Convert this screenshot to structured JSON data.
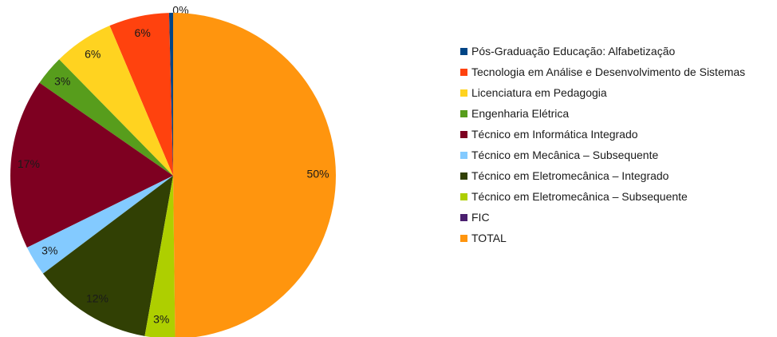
{
  "chart_data": {
    "type": "pie",
    "categories": [
      "Pós-Graduação Educação: Alfabetização",
      "Tecnologia em Análise e Desenvolvimento de Sistemas",
      "Licenciatura em Pedagogia",
      "Engenharia Elétrica",
      "Técnico em Informática Integrado",
      "Técnico em Mecânica – Subsequente",
      "Técnico em Eletromecânica – Integrado",
      "Técnico em Eletromecânica – Subsequente",
      "FIC",
      "TOTAL"
    ],
    "values": [
      0.4,
      6,
      6,
      3,
      17,
      3,
      12,
      3,
      0,
      50
    ],
    "value_labels": [
      "0%",
      "6%",
      "6%",
      "3%",
      "17%",
      "3%",
      "12%",
      "3%",
      null,
      "50%"
    ],
    "colors": [
      "#004586",
      "#ff420e",
      "#ffd320",
      "#579d1c",
      "#7e0021",
      "#83caff",
      "#314004",
      "#aecf00",
      "#4b1f6f",
      "#ff950e"
    ],
    "legend": "right"
  }
}
